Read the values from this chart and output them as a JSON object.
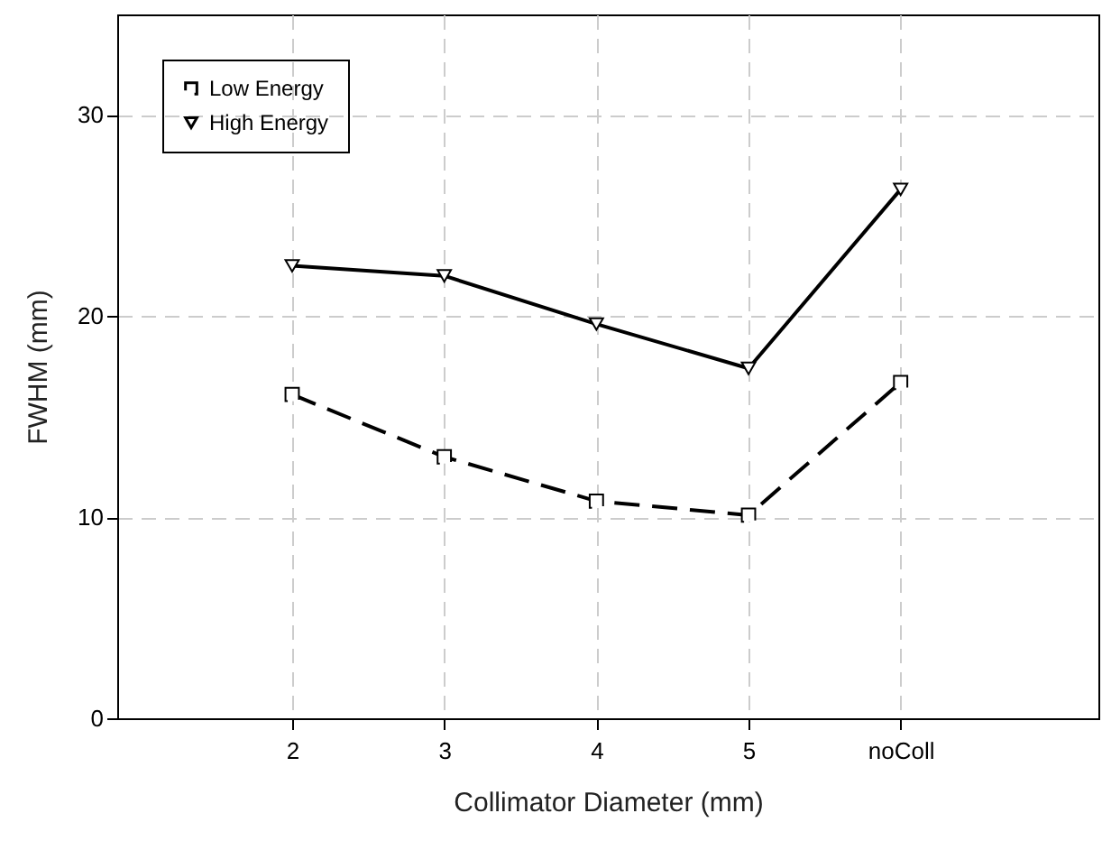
{
  "chart_data": {
    "type": "line",
    "xlabel": "Collimator Diameter (mm)",
    "ylabel": "FWHM (mm)",
    "categories": [
      "2",
      "3",
      "4",
      "5",
      "noColl"
    ],
    "series": [
      {
        "name": "Low Energy",
        "color": "#000000",
        "values": [
          16.1,
          13.0,
          10.8,
          10.1,
          16.7
        ],
        "marker": "square",
        "line_style": "dashed"
      },
      {
        "name": "High Energy",
        "color": "#000000",
        "values": [
          22.5,
          22.0,
          19.6,
          17.4,
          26.3
        ],
        "marker": "triangle",
        "line_style": "solid"
      }
    ],
    "ylim": [
      0,
      35
    ],
    "yticks": [
      0,
      10,
      20,
      30
    ],
    "grid": true,
    "legend": "top left"
  }
}
